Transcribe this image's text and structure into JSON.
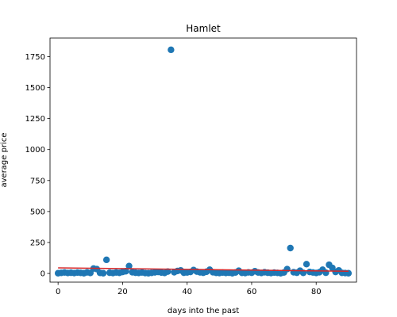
{
  "chart_data": {
    "type": "scatter",
    "title": "Hamlet",
    "xlabel": "days into the past",
    "ylabel": "average price",
    "xlim": [
      -2.5,
      92.5
    ],
    "ylim": [
      -70,
      1900
    ],
    "xticks": [
      0,
      20,
      40,
      60,
      80
    ],
    "yticks": [
      0,
      250,
      500,
      750,
      1000,
      1250,
      1500,
      1750
    ],
    "grid": false,
    "series": [
      {
        "color": "#1f77b4",
        "points": [
          [
            0,
            2
          ],
          [
            1,
            5
          ],
          [
            2,
            8
          ],
          [
            3,
            4
          ],
          [
            4,
            6
          ],
          [
            5,
            3
          ],
          [
            6,
            7
          ],
          [
            7,
            5
          ],
          [
            8,
            2
          ],
          [
            9,
            9
          ],
          [
            10,
            4
          ],
          [
            11,
            40
          ],
          [
            12,
            35
          ],
          [
            13,
            5
          ],
          [
            14,
            2
          ],
          [
            15,
            110
          ],
          [
            16,
            6
          ],
          [
            17,
            3
          ],
          [
            18,
            8
          ],
          [
            19,
            5
          ],
          [
            20,
            12
          ],
          [
            21,
            18
          ],
          [
            22,
            60
          ],
          [
            23,
            10
          ],
          [
            24,
            6
          ],
          [
            25,
            4
          ],
          [
            26,
            8
          ],
          [
            27,
            3
          ],
          [
            28,
            2
          ],
          [
            29,
            5
          ],
          [
            30,
            9
          ],
          [
            31,
            12
          ],
          [
            32,
            7
          ],
          [
            33,
            4
          ],
          [
            34,
            15
          ],
          [
            35,
            1805
          ],
          [
            36,
            10
          ],
          [
            37,
            20
          ],
          [
            38,
            25
          ],
          [
            39,
            6
          ],
          [
            40,
            8
          ],
          [
            41,
            12
          ],
          [
            42,
            28
          ],
          [
            43,
            15
          ],
          [
            44,
            9
          ],
          [
            45,
            6
          ],
          [
            46,
            14
          ],
          [
            47,
            30
          ],
          [
            48,
            10
          ],
          [
            49,
            5
          ],
          [
            50,
            3
          ],
          [
            51,
            7
          ],
          [
            52,
            4
          ],
          [
            53,
            6
          ],
          [
            54,
            2
          ],
          [
            55,
            8
          ],
          [
            56,
            22
          ],
          [
            57,
            5
          ],
          [
            58,
            3
          ],
          [
            59,
            9
          ],
          [
            60,
            6
          ],
          [
            61,
            18
          ],
          [
            62,
            8
          ],
          [
            63,
            4
          ],
          [
            64,
            10
          ],
          [
            65,
            6
          ],
          [
            66,
            3
          ],
          [
            67,
            7
          ],
          [
            68,
            5
          ],
          [
            69,
            2
          ],
          [
            70,
            8
          ],
          [
            71,
            35
          ],
          [
            72,
            205
          ],
          [
            73,
            10
          ],
          [
            74,
            6
          ],
          [
            75,
            22
          ],
          [
            76,
            5
          ],
          [
            77,
            75
          ],
          [
            78,
            12
          ],
          [
            79,
            8
          ],
          [
            80,
            4
          ],
          [
            81,
            10
          ],
          [
            82,
            30
          ],
          [
            83,
            6
          ],
          [
            84,
            70
          ],
          [
            85,
            45
          ],
          [
            86,
            12
          ],
          [
            87,
            25
          ],
          [
            88,
            5
          ],
          [
            89,
            3
          ],
          [
            90,
            2
          ]
        ]
      }
    ],
    "trend_line": {
      "color": "#d62728",
      "x": [
        0,
        90
      ],
      "y": [
        45,
        18
      ]
    }
  }
}
